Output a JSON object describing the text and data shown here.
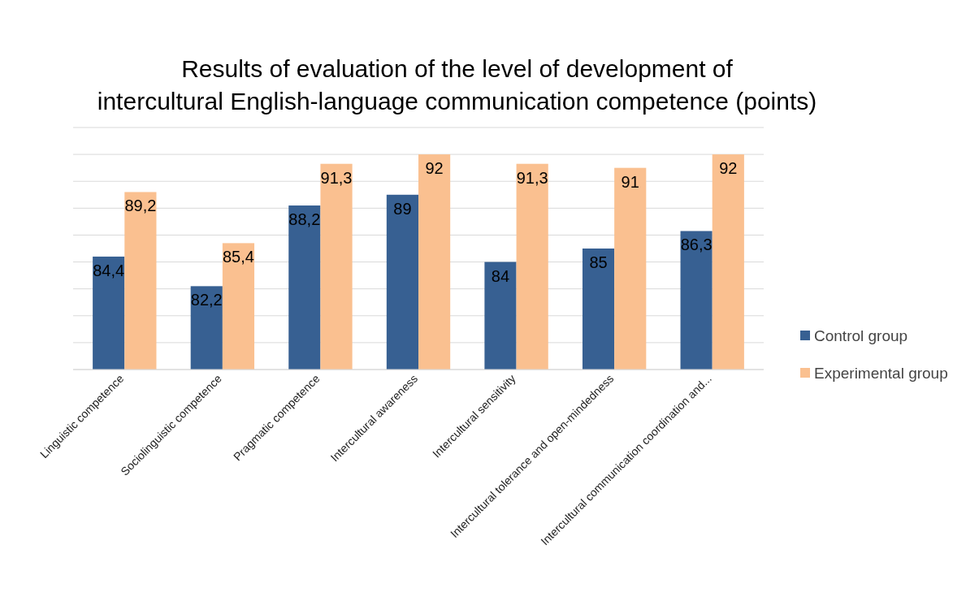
{
  "chart_data": {
    "type": "bar",
    "title": "Results of evaluation of the level of development of intercultural English-language communication competence (points)",
    "categories": [
      "Linguistic competence",
      "Sociolinguistic competence",
      "Pragmatic competence",
      "Intercultural awareness",
      "Intercultural sensitivity",
      "Intercultural tolerance and open-mindedness",
      "Intercultural communication coordination and..."
    ],
    "series": [
      {
        "name": "Control group",
        "color": "#376092",
        "values": [
          84.4,
          82.2,
          88.2,
          89,
          84,
          85,
          86.3
        ],
        "value_labels": [
          "84,4",
          "82,2",
          "88,2",
          "89",
          "84",
          "85",
          "86,3"
        ]
      },
      {
        "name": "Experimental group",
        "color": "#fac090",
        "values": [
          89.2,
          85.4,
          91.3,
          92,
          91.3,
          91,
          92
        ],
        "value_labels": [
          "89,2",
          "85,4",
          "91,3",
          "92",
          "91,3",
          "91",
          "92"
        ]
      }
    ],
    "ylim": [
      76,
      94
    ],
    "yticks": [
      {
        "value": 76,
        "label": null
      },
      {
        "value": 78,
        "label": null
      },
      {
        "value": 80,
        "label": null
      },
      {
        "value": 82,
        "label": null
      },
      {
        "value": 84,
        "label": null
      },
      {
        "value": 86,
        "label": null
      },
      {
        "value": 88,
        "label": null
      },
      {
        "value": 90,
        "label": null
      },
      {
        "value": 92,
        "label": null
      },
      {
        "value": 94,
        "label": null
      }
    ],
    "grid": "y",
    "legend": "right",
    "tick_labels": "x"
  }
}
